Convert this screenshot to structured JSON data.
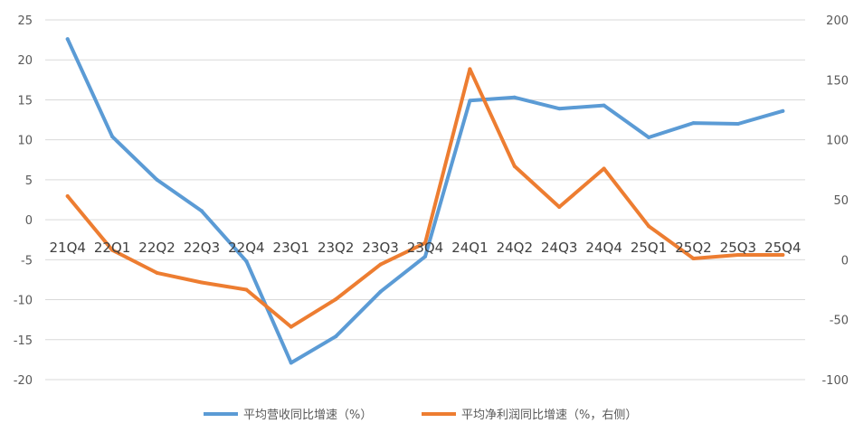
{
  "chart_data": {
    "type": "line",
    "categories": [
      "21Q4",
      "22Q1",
      "22Q2",
      "22Q3",
      "22Q4",
      "23Q1",
      "23Q2",
      "23Q3",
      "23Q4",
      "24Q1",
      "24Q2",
      "24Q3",
      "24Q4",
      "25Q1",
      "25Q2",
      "25Q3",
      "25Q4"
    ],
    "y_left": {
      "range": [
        -20,
        25
      ],
      "ticks": [
        "-20",
        "-15",
        "-10",
        "-5",
        "0",
        "5",
        "10",
        "15",
        "20",
        "25"
      ]
    },
    "y_right": {
      "range": [
        -100,
        200
      ],
      "ticks": [
        "-100",
        "-50",
        "0",
        "50",
        "100",
        "150",
        "200"
      ]
    },
    "grid": "horizontal",
    "legend_position": "bottom",
    "series": [
      {
        "name": "平均营收同比增速（%）",
        "axis": "left",
        "color": "#5B9BD5",
        "values": [
          22.6,
          10.4,
          5.0,
          1.1,
          -5.2,
          -17.9,
          -14.6,
          -9.0,
          -4.6,
          14.9,
          15.3,
          13.9,
          14.3,
          10.3,
          12.1,
          12.0,
          13.6
        ]
      },
      {
        "name": "平均净利润同比增速（%，右侧）",
        "axis": "right",
        "color": "#ED7D31",
        "values": [
          53,
          8,
          -11,
          -19,
          -25,
          -56,
          -33,
          -4,
          14,
          159,
          78,
          44,
          76,
          28,
          1,
          4,
          4
        ]
      }
    ]
  }
}
